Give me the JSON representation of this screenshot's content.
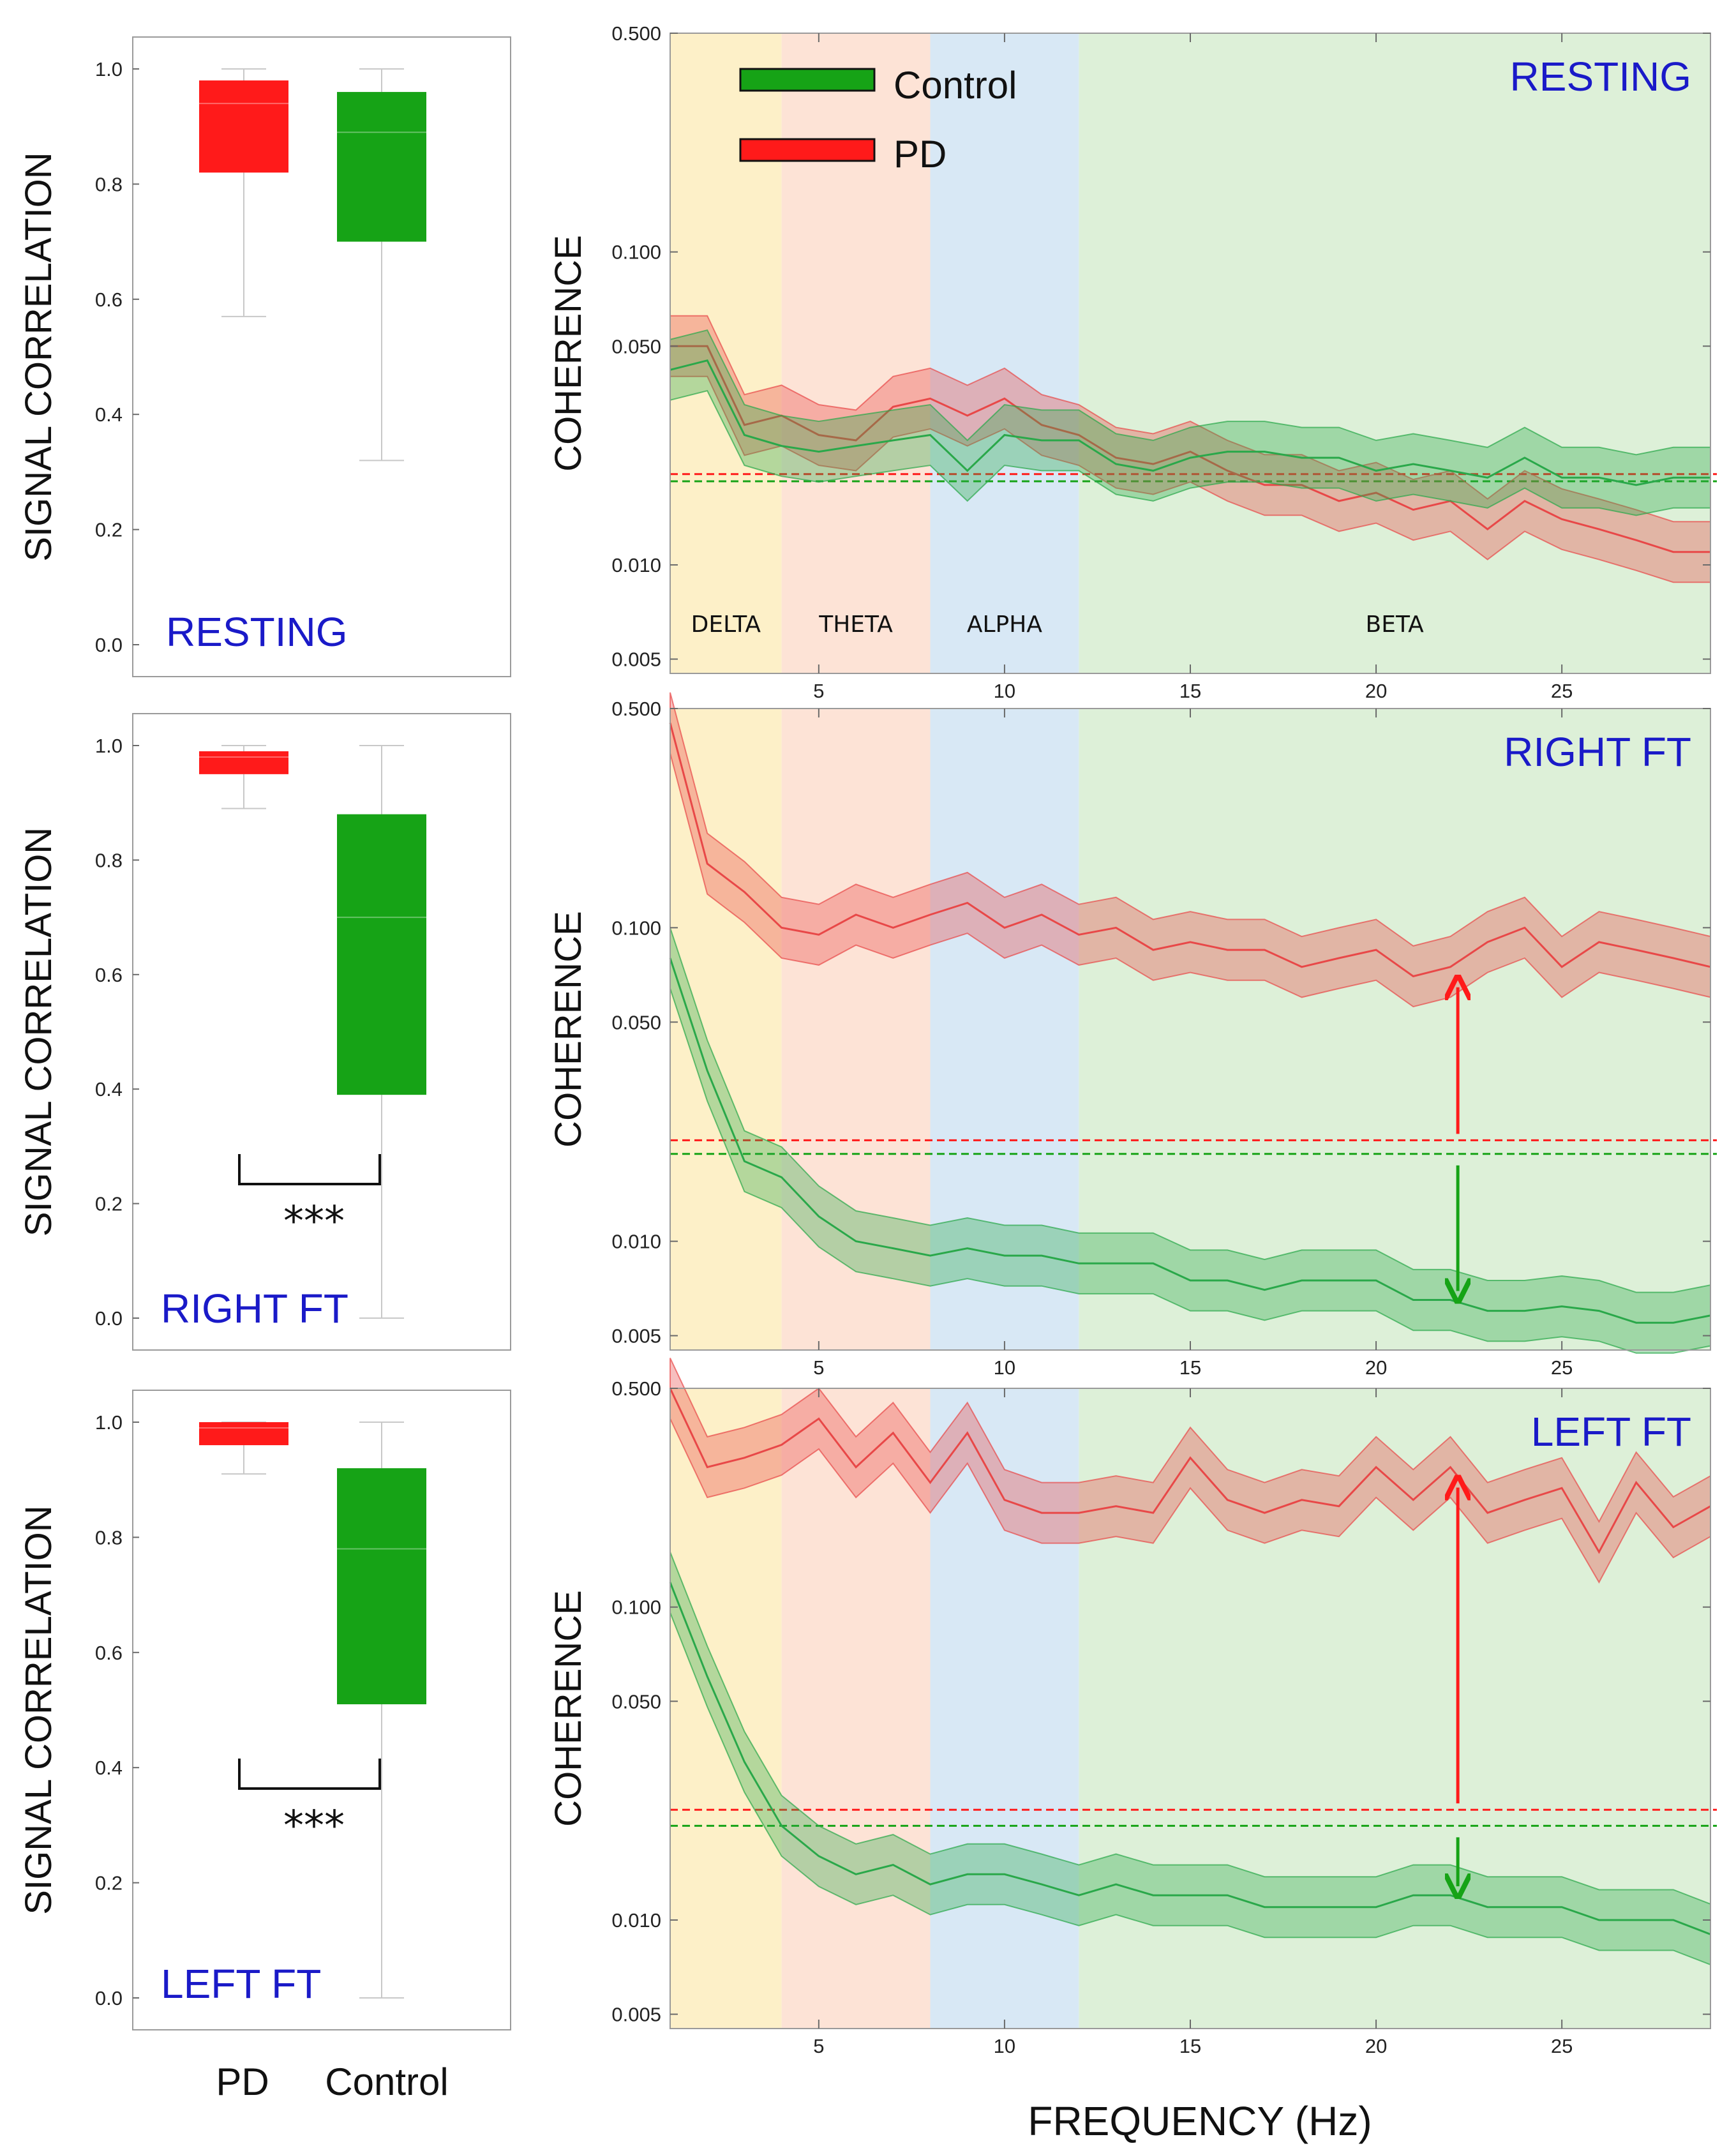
{
  "figure": {
    "x_axis_label": "FREQUENCY (Hz)",
    "box_categories": [
      "PD",
      "Control"
    ]
  },
  "colors": {
    "pd": "#ff1a1a",
    "control": "#16a316",
    "pd_line": "#e84848",
    "control_line": "#2aa84a",
    "condition_label": "#1a1ac8",
    "delta_band": "#fdf0c8",
    "theta_band": "#fde3d6",
    "alpha_band": "#d8e8f5",
    "beta_band": "#ddf0d8"
  },
  "legend": {
    "control_label": "Control",
    "pd_label": "PD"
  },
  "bands": [
    {
      "name": "DELTA",
      "from": 1,
      "to": 4
    },
    {
      "name": "THETA",
      "from": 4,
      "to": 8
    },
    {
      "name": "ALPHA",
      "from": 8,
      "to": 12
    },
    {
      "name": "BETA",
      "from": 12,
      "to": 29
    }
  ],
  "chart_data": [
    {
      "type": "box",
      "panel": "resting-correlation",
      "condition": "RESTING",
      "ylabel": "SIGNAL CORRELATION",
      "ylim": [
        0,
        1.05
      ],
      "yticks": [
        "0.0",
        "0.2",
        "0.4",
        "0.6",
        "0.8",
        "1.0"
      ],
      "categories": [
        "PD",
        "Control"
      ],
      "boxes": [
        {
          "name": "PD",
          "min": 0.57,
          "q1": 0.82,
          "median": 0.94,
          "q3": 0.98,
          "max": 1.0
        },
        {
          "name": "Control",
          "min": 0.32,
          "q1": 0.7,
          "median": 0.89,
          "q3": 0.96,
          "max": 1.0
        }
      ],
      "significance": ""
    },
    {
      "type": "box",
      "panel": "right-ft-correlation",
      "condition": "RIGHT FT",
      "ylabel": "SIGNAL CORRELATION",
      "ylim": [
        0,
        1.05
      ],
      "yticks": [
        "0.0",
        "0.2",
        "0.4",
        "0.6",
        "0.8",
        "1.0"
      ],
      "categories": [
        "PD",
        "Control"
      ],
      "boxes": [
        {
          "name": "PD",
          "min": 0.89,
          "q1": 0.95,
          "median": 0.98,
          "q3": 0.99,
          "max": 1.0
        },
        {
          "name": "Control",
          "min": 0.0,
          "q1": 0.39,
          "median": 0.7,
          "q3": 0.88,
          "max": 1.0
        }
      ],
      "significance": "***"
    },
    {
      "type": "box",
      "panel": "left-ft-correlation",
      "condition": "LEFT FT",
      "ylabel": "SIGNAL CORRELATION",
      "ylim": [
        0,
        1.05
      ],
      "yticks": [
        "0.0",
        "0.2",
        "0.4",
        "0.6",
        "0.8",
        "1.0"
      ],
      "categories": [
        "PD",
        "Control"
      ],
      "boxes": [
        {
          "name": "PD",
          "min": 0.91,
          "q1": 0.96,
          "median": 0.99,
          "q3": 1.0,
          "max": 1.0
        },
        {
          "name": "Control",
          "min": 0.0,
          "q1": 0.51,
          "median": 0.78,
          "q3": 0.92,
          "max": 1.0
        }
      ],
      "significance": "***"
    },
    {
      "type": "line",
      "panel": "resting-coherence",
      "condition": "RESTING",
      "ylabel": "COHERENCE",
      "yscale": "log",
      "ylim": [
        0.0045,
        0.5
      ],
      "xlim": [
        1,
        29
      ],
      "yticks": [
        "0.005",
        "0.010",
        "0.050",
        "0.100",
        "0.500"
      ],
      "xticks": [
        "5",
        "10",
        "15",
        "20",
        "25"
      ],
      "thresholds": {
        "PD": 0.0195,
        "Control": 0.0185
      },
      "arrows": false,
      "series": [
        {
          "name": "PD",
          "x": [
            1,
            2,
            3,
            4,
            5,
            6,
            7,
            8,
            9,
            10,
            11,
            12,
            13,
            14,
            15,
            16,
            17,
            18,
            19,
            20,
            21,
            22,
            23,
            24,
            25,
            26,
            27,
            28,
            29
          ],
          "y": [
            0.05,
            0.05,
            0.028,
            0.03,
            0.026,
            0.025,
            0.032,
            0.034,
            0.03,
            0.034,
            0.028,
            0.026,
            0.022,
            0.021,
            0.023,
            0.02,
            0.018,
            0.018,
            0.016,
            0.017,
            0.015,
            0.016,
            0.013,
            0.016,
            0.014,
            0.013,
            0.012,
            0.011,
            0.011
          ]
        },
        {
          "name": "Control",
          "x": [
            1,
            2,
            3,
            4,
            5,
            6,
            7,
            8,
            9,
            10,
            11,
            12,
            13,
            14,
            15,
            16,
            17,
            18,
            19,
            20,
            21,
            22,
            23,
            24,
            25,
            26,
            27,
            28,
            29
          ],
          "y": [
            0.042,
            0.045,
            0.026,
            0.024,
            0.023,
            0.024,
            0.025,
            0.026,
            0.02,
            0.026,
            0.025,
            0.025,
            0.021,
            0.02,
            0.022,
            0.023,
            0.023,
            0.022,
            0.022,
            0.02,
            0.021,
            0.02,
            0.019,
            0.022,
            0.019,
            0.019,
            0.018,
            0.019,
            0.019
          ]
        }
      ]
    },
    {
      "type": "line",
      "panel": "right-ft-coherence",
      "condition": "RIGHT FT",
      "ylabel": "COHERENCE",
      "yscale": "log",
      "ylim": [
        0.0045,
        0.5
      ],
      "xlim": [
        1,
        29
      ],
      "yticks": [
        "0.005",
        "0.010",
        "0.050",
        "0.100",
        "0.500"
      ],
      "xticks": [
        "5",
        "10",
        "15",
        "20",
        "25"
      ],
      "thresholds": {
        "PD": 0.021,
        "Control": 0.019
      },
      "arrows": true,
      "series": [
        {
          "name": "PD",
          "x": [
            1,
            2,
            3,
            4,
            5,
            6,
            7,
            8,
            9,
            10,
            11,
            12,
            13,
            14,
            15,
            16,
            17,
            18,
            19,
            20,
            21,
            22,
            23,
            24,
            25,
            26,
            27,
            28,
            29
          ],
          "y": [
            0.45,
            0.16,
            0.13,
            0.1,
            0.095,
            0.11,
            0.1,
            0.11,
            0.12,
            0.1,
            0.11,
            0.095,
            0.1,
            0.085,
            0.09,
            0.085,
            0.085,
            0.075,
            0.08,
            0.085,
            0.07,
            0.075,
            0.09,
            0.1,
            0.075,
            0.09,
            0.085,
            0.08,
            0.075
          ]
        },
        {
          "name": "Control",
          "x": [
            1,
            2,
            3,
            4,
            5,
            6,
            7,
            8,
            9,
            10,
            11,
            12,
            13,
            14,
            15,
            16,
            17,
            18,
            19,
            20,
            21,
            22,
            23,
            24,
            25,
            26,
            27,
            28,
            29
          ],
          "y": [
            0.08,
            0.035,
            0.018,
            0.016,
            0.012,
            0.01,
            0.0095,
            0.009,
            0.0095,
            0.009,
            0.009,
            0.0085,
            0.0085,
            0.0085,
            0.0075,
            0.0075,
            0.007,
            0.0075,
            0.0075,
            0.0075,
            0.0065,
            0.0065,
            0.006,
            0.006,
            0.0062,
            0.006,
            0.0055,
            0.0055,
            0.0058
          ]
        }
      ]
    },
    {
      "type": "line",
      "panel": "left-ft-coherence",
      "condition": "LEFT FT",
      "ylabel": "COHERENCE",
      "yscale": "log",
      "ylim": [
        0.0045,
        0.5
      ],
      "xlim": [
        1,
        29
      ],
      "yticks": [
        "0.005",
        "0.010",
        "0.050",
        "0.100",
        "0.500"
      ],
      "xticks": [
        "5",
        "10",
        "15",
        "20",
        "25"
      ],
      "thresholds": {
        "PD": 0.0225,
        "Control": 0.02
      },
      "arrows": true,
      "series": [
        {
          "name": "PD",
          "x": [
            1,
            2,
            3,
            4,
            5,
            6,
            7,
            8,
            9,
            10,
            11,
            12,
            13,
            14,
            15,
            16,
            17,
            18,
            19,
            20,
            21,
            22,
            23,
            24,
            25,
            26,
            27,
            28,
            29
          ],
          "y": [
            0.5,
            0.28,
            0.3,
            0.33,
            0.4,
            0.28,
            0.36,
            0.25,
            0.36,
            0.22,
            0.2,
            0.2,
            0.21,
            0.2,
            0.3,
            0.22,
            0.2,
            0.22,
            0.21,
            0.28,
            0.22,
            0.28,
            0.2,
            0.22,
            0.24,
            0.15,
            0.25,
            0.18,
            0.21
          ]
        },
        {
          "name": "Control",
          "x": [
            1,
            2,
            3,
            4,
            5,
            6,
            7,
            8,
            9,
            10,
            11,
            12,
            13,
            14,
            15,
            16,
            17,
            18,
            19,
            20,
            21,
            22,
            23,
            24,
            25,
            26,
            27,
            28,
            29
          ],
          "y": [
            0.12,
            0.06,
            0.032,
            0.02,
            0.016,
            0.014,
            0.015,
            0.013,
            0.014,
            0.014,
            0.013,
            0.012,
            0.013,
            0.012,
            0.012,
            0.012,
            0.011,
            0.011,
            0.011,
            0.011,
            0.012,
            0.012,
            0.011,
            0.011,
            0.011,
            0.01,
            0.01,
            0.01,
            0.009
          ]
        }
      ]
    }
  ]
}
